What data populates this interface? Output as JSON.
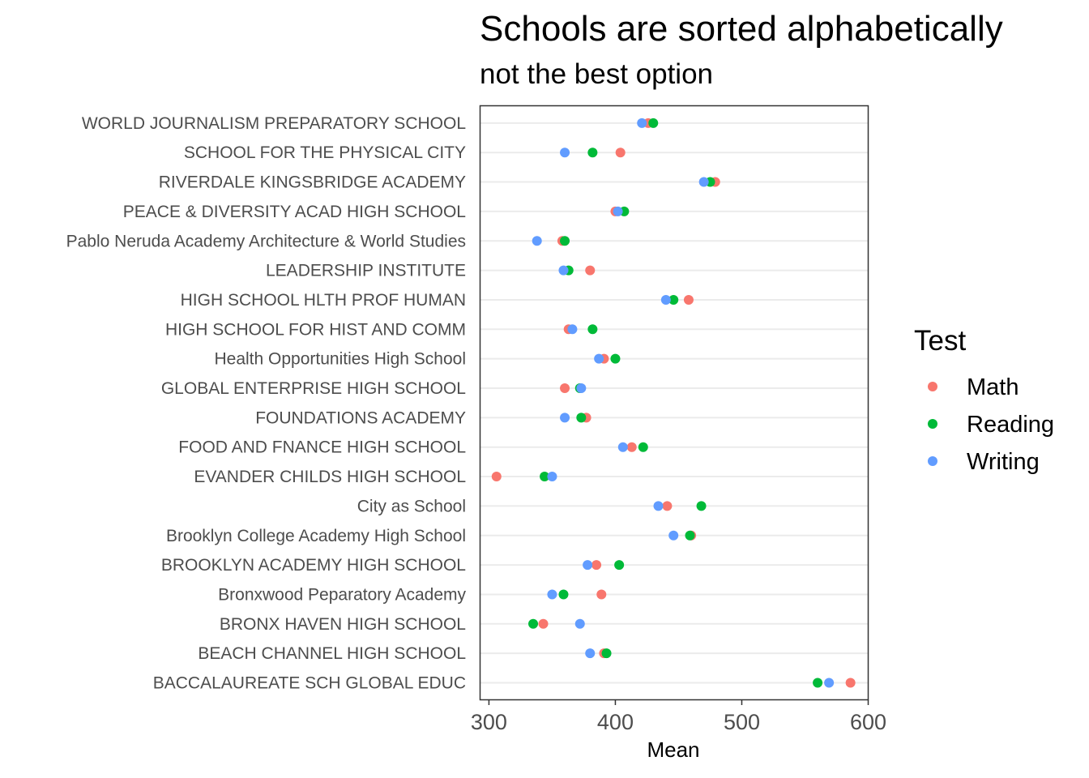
{
  "chart_data": {
    "type": "scatter",
    "title": "Schools are sorted alphabetically",
    "subtitle": "not the best option",
    "xlabel": "Mean",
    "ylabel": "",
    "xlim": [
      293,
      600
    ],
    "xticks": [
      300,
      400,
      500,
      600
    ],
    "grid": true,
    "legend": {
      "title": "Test",
      "position": "right"
    },
    "categories": [
      "BACCALAUREATE SCH GLOBAL EDUC",
      "BEACH CHANNEL HIGH SCHOOL",
      "BRONX HAVEN HIGH SCHOOL",
      "Bronxwood Peparatory Academy",
      "BROOKLYN ACADEMY HIGH SCHOOL",
      "Brooklyn College Academy High School",
      "City as School",
      "EVANDER CHILDS HIGH SCHOOL",
      "FOOD AND FNANCE HIGH SCHOOL",
      "FOUNDATIONS ACADEMY",
      "GLOBAL ENTERPRISE HIGH SCHOOL",
      "Health Opportunities High School",
      "HIGH SCHOOL FOR HIST AND COMM",
      "HIGH SCHOOL HLTH PROF HUMAN",
      "LEADERSHIP INSTITUTE",
      "Pablo Neruda Academy Architecture & World Studies",
      "PEACE & DIVERSITY ACAD HIGH SCHOOL",
      "RIVERDALE KINGSBRIDGE ACADEMY",
      "SCHOOL FOR THE PHYSICAL CITY",
      "WORLD JOURNALISM PREPARATORY SCHOOL"
    ],
    "series": [
      {
        "name": "Math",
        "color": "#F8766D",
        "values": [
          586,
          391,
          343,
          389,
          385,
          460,
          441,
          306,
          413,
          377,
          360,
          391,
          363,
          458,
          380,
          358,
          400,
          479,
          404,
          426
        ]
      },
      {
        "name": "Reading",
        "color": "#00BA38",
        "values": [
          560,
          393,
          335,
          359,
          403,
          459,
          468,
          344,
          422,
          373,
          372,
          400,
          382,
          446,
          363,
          360,
          407,
          475,
          382,
          430
        ]
      },
      {
        "name": "Writing",
        "color": "#619CFF",
        "values": [
          569,
          380,
          372,
          350,
          378,
          446,
          434,
          350,
          406,
          360,
          373,
          387,
          366,
          440,
          359,
          338,
          402,
          470,
          360,
          421
        ]
      }
    ]
  }
}
